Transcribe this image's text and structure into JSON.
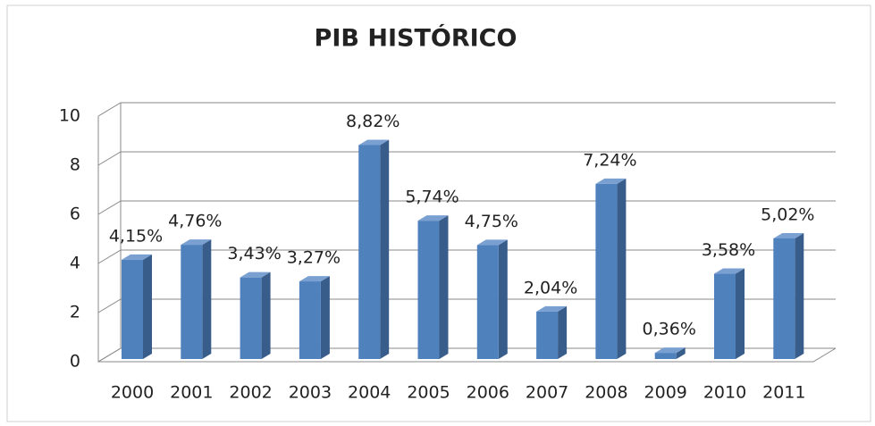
{
  "chart_data": {
    "type": "bar",
    "title": "PIB HISTÓRICO",
    "categories": [
      "2000",
      "2001",
      "2002",
      "2003",
      "2004",
      "2005",
      "2006",
      "2007",
      "2008",
      "2009",
      "2010",
      "2011"
    ],
    "values": [
      4.15,
      4.76,
      3.43,
      3.27,
      8.82,
      5.74,
      4.75,
      2.04,
      7.24,
      0.36,
      3.58,
      5.02
    ],
    "value_labels": [
      "4,15%",
      "4,76%",
      "3,43%",
      "3,27%",
      "8,82%",
      "5,74%",
      "4,75%",
      "2,04%",
      "7,24%",
      "0,36%",
      "3,58%",
      "5,02%"
    ],
    "color": "#4f81bd",
    "ylim": [
      0,
      10
    ],
    "yticks": [
      0,
      2,
      4,
      6,
      8,
      10
    ],
    "grid": true
  }
}
